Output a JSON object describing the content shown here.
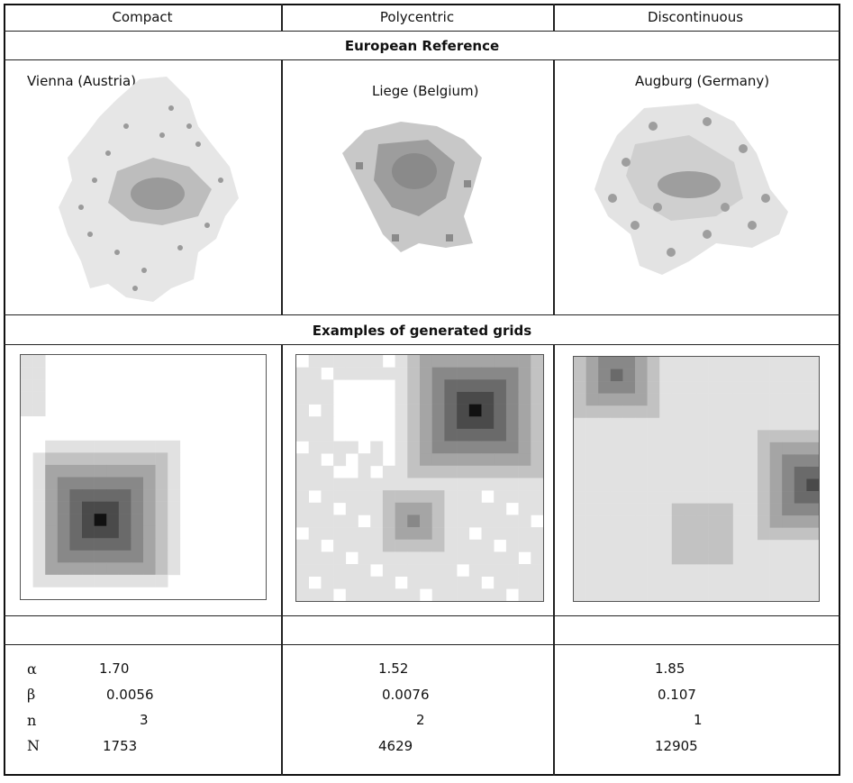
{
  "columns": [
    {
      "name": "Compact"
    },
    {
      "name": "Polycentric"
    },
    {
      "name": "Discontinuous"
    }
  ],
  "sections": {
    "reference_title": "European Reference",
    "grids_title": "Examples of generated grids"
  },
  "cities": [
    {
      "label": "Vienna (Austria)"
    },
    {
      "label": "Liege (Belgium)"
    },
    {
      "label": "Augburg (Germany)"
    }
  ],
  "parameters": {
    "symbols": [
      "α",
      "β",
      "n",
      "N"
    ],
    "compact": {
      "alpha": "1.70",
      "beta": "0.0056",
      "n": "3",
      "N": "1753"
    },
    "polycentric": {
      "alpha": "1.52",
      "beta": "0.0076",
      "n": "2",
      "N": "4629"
    },
    "discontinuous": {
      "alpha": "1.85",
      "beta": "0.107",
      "n": "1",
      "N": "12905"
    }
  },
  "colors": {
    "grid_levels": [
      "#ffffff",
      "#e1e1e1",
      "#c2c2c2",
      "#a5a5a5",
      "#888888",
      "#6a6a6a",
      "#4a4a4a",
      "#111111"
    ]
  }
}
